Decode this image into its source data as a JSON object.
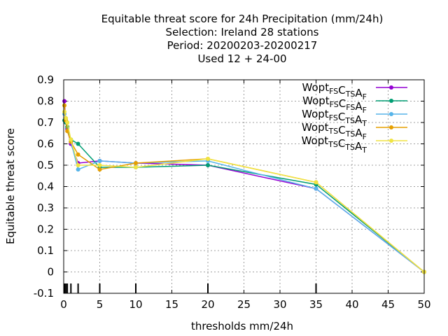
{
  "chart_data": {
    "type": "line",
    "title_lines": [
      "Equitable threat score  for 24h Precipitation (mm/24h)",
      "Selection: Ireland      28 stations",
      "Period: 20200203-20200217",
      "Used  12 + 24-00"
    ],
    "xlabel": "thresholds mm/24h",
    "ylabel": "Equitable threat score",
    "xlim": [
      0,
      50
    ],
    "ylim": [
      -0.1,
      0.9
    ],
    "xticks": [
      0,
      5,
      10,
      15,
      20,
      25,
      30,
      35,
      40,
      45,
      50
    ],
    "yticks": [
      -0.1,
      0,
      0.1,
      0.2,
      0.3,
      0.4,
      0.5,
      0.6,
      0.7,
      0.8,
      0.9
    ],
    "grid": true,
    "legend_position": "top-right",
    "threshold_marks": [
      0.1,
      0.3,
      0.5,
      1,
      2,
      5,
      10,
      20,
      35
    ],
    "series": [
      {
        "name": "Wopt FS CTS AF",
        "legend": [
          {
            "t": "Wopt",
            "s": "FS"
          },
          {
            "t": "C",
            "s": "TS"
          },
          {
            "t": "A",
            "s": "F"
          }
        ],
        "color": "#9400d3",
        "x": [
          0.1,
          0.3,
          0.5,
          1,
          2,
          5,
          10,
          20,
          35,
          50
        ],
        "y": [
          0.8,
          0.7,
          0.67,
          0.6,
          0.51,
          0.52,
          0.51,
          0.5,
          0.39,
          0.0
        ]
      },
      {
        "name": "Wopt FS CFS AF",
        "legend": [
          {
            "t": "Wopt",
            "s": "FS"
          },
          {
            "t": "C",
            "s": "FS"
          },
          {
            "t": "A",
            "s": "F"
          }
        ],
        "color": "#009e73",
        "x": [
          0.1,
          0.3,
          0.5,
          1,
          2,
          5,
          10,
          20,
          35,
          50
        ],
        "y": [
          0.71,
          0.7,
          0.68,
          0.62,
          0.6,
          0.49,
          0.49,
          0.5,
          0.41,
          0.0
        ]
      },
      {
        "name": "Wopt FS CTS AT",
        "legend": [
          {
            "t": "Wopt",
            "s": "FS"
          },
          {
            "t": "C",
            "s": "TS"
          },
          {
            "t": "A",
            "s": "T"
          }
        ],
        "color": "#56b4e9",
        "x": [
          0.1,
          0.3,
          0.5,
          1,
          2,
          5,
          10,
          20,
          35,
          50
        ],
        "y": [
          0.74,
          0.72,
          0.7,
          0.61,
          0.48,
          0.52,
          0.51,
          0.52,
          0.39,
          0.0
        ]
      },
      {
        "name": "Wopt TS CTS AF",
        "legend": [
          {
            "t": "Wopt",
            "s": "TS"
          },
          {
            "t": "C",
            "s": "TS"
          },
          {
            "t": "A",
            "s": "F"
          }
        ],
        "color": "#e69f00",
        "x": [
          0.1,
          0.3,
          0.5,
          1,
          2,
          5,
          10,
          20,
          35,
          50
        ],
        "y": [
          0.78,
          0.71,
          0.66,
          0.61,
          0.55,
          0.48,
          0.51,
          0.53,
          0.42,
          0.0
        ]
      },
      {
        "name": "Wopt TS CTS AT",
        "legend": [
          {
            "t": "Wopt",
            "s": "TS"
          },
          {
            "t": "C",
            "s": "TS"
          },
          {
            "t": "A",
            "s": "T"
          }
        ],
        "color": "#f0e442",
        "x": [
          0.1,
          0.3,
          0.5,
          1,
          2,
          5,
          10,
          20,
          35,
          50
        ],
        "y": [
          0.75,
          0.72,
          0.7,
          0.62,
          0.5,
          0.5,
          0.49,
          0.53,
          0.42,
          0.0
        ]
      }
    ]
  }
}
